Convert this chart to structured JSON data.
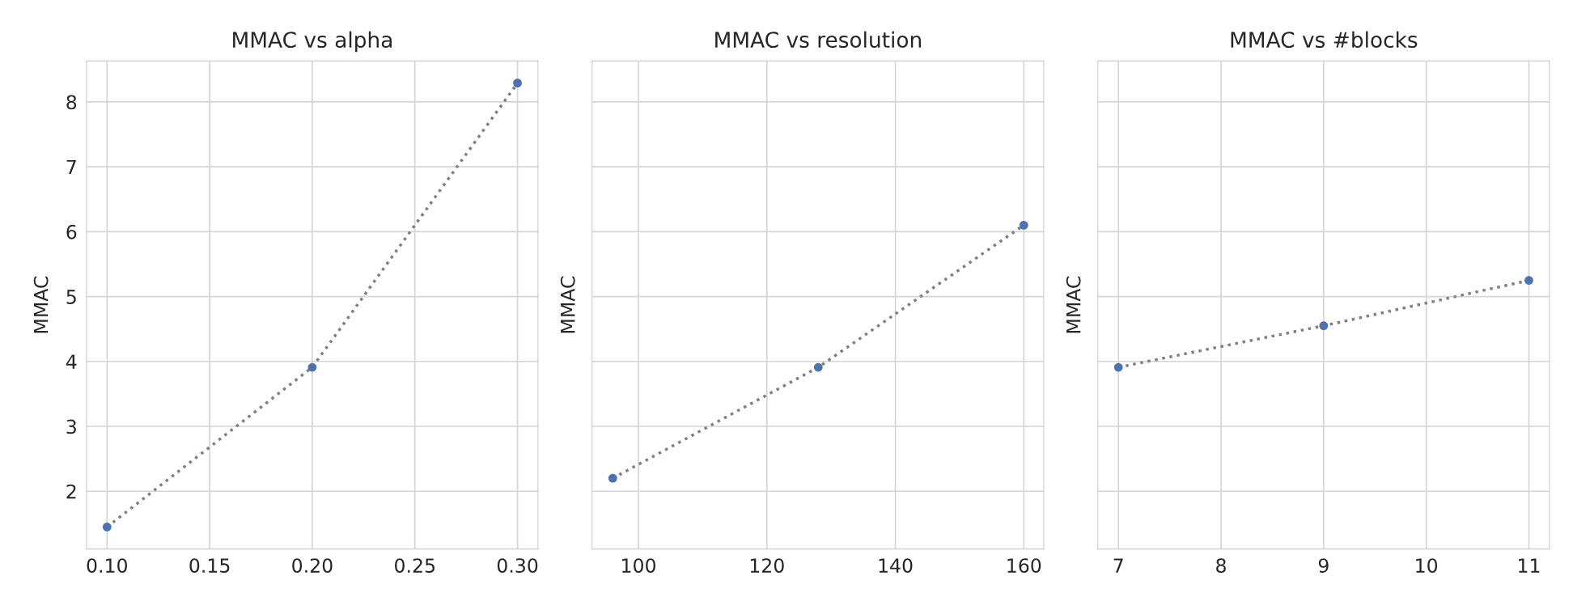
{
  "chart_data": [
    {
      "type": "line",
      "title": "MMAC vs alpha",
      "ylabel": "MMAC",
      "x": [
        0.1,
        0.2,
        0.3
      ],
      "xlim": [
        0.09,
        0.31
      ],
      "xticks": [
        {
          "value": 0.1,
          "label": "0.10"
        },
        {
          "value": 0.15,
          "label": "0.15"
        },
        {
          "value": 0.2,
          "label": "0.20"
        },
        {
          "value": 0.25,
          "label": "0.25"
        },
        {
          "value": 0.3,
          "label": "0.30"
        }
      ],
      "ylim": [
        1.11,
        8.63
      ],
      "yticks": [
        2,
        3,
        4,
        5,
        6,
        7,
        8
      ],
      "grid": true,
      "series": [
        {
          "color": "#808080",
          "line_style": "dotted",
          "values": [
            1.45,
            3.91,
            8.29
          ]
        },
        {
          "type": "scatter",
          "color": "#4c72b0",
          "marker": "circle",
          "values": [
            1.45,
            3.91,
            8.29
          ]
        }
      ]
    },
    {
      "type": "line",
      "title": "MMAC vs resolution",
      "ylabel": "MMAC",
      "x": [
        96,
        128,
        160
      ],
      "xlim": [
        92.8,
        163.1
      ],
      "xticks": [
        100,
        120,
        140,
        160
      ],
      "ylim": [
        1.11,
        8.63
      ],
      "yticks": [
        2,
        3,
        4,
        5,
        6,
        7,
        8
      ],
      "tick_labels": "x",
      "grid": true,
      "series": [
        {
          "color": "#808080",
          "line_style": "dotted",
          "values": [
            2.2,
            3.91,
            6.1
          ]
        },
        {
          "type": "scatter",
          "color": "#4c72b0",
          "marker": "circle",
          "values": [
            2.2,
            3.91,
            6.1
          ]
        }
      ]
    },
    {
      "type": "line",
      "title": "MMAC vs #blocks",
      "ylabel": "MMAC",
      "x": [
        7,
        9,
        11
      ],
      "xlim": [
        6.8,
        11.2
      ],
      "xticks": [
        7,
        8,
        9,
        10,
        11
      ],
      "ylim": [
        1.11,
        8.63
      ],
      "yticks": [
        2,
        3,
        4,
        5,
        6,
        7,
        8
      ],
      "tick_labels": "x",
      "grid": true,
      "series": [
        {
          "color": "#808080",
          "line_style": "dotted",
          "values": [
            3.91,
            4.55,
            5.25
          ]
        },
        {
          "type": "scatter",
          "color": "#4c72b0",
          "marker": "circle",
          "values": [
            3.91,
            4.55,
            5.25
          ]
        }
      ]
    }
  ]
}
